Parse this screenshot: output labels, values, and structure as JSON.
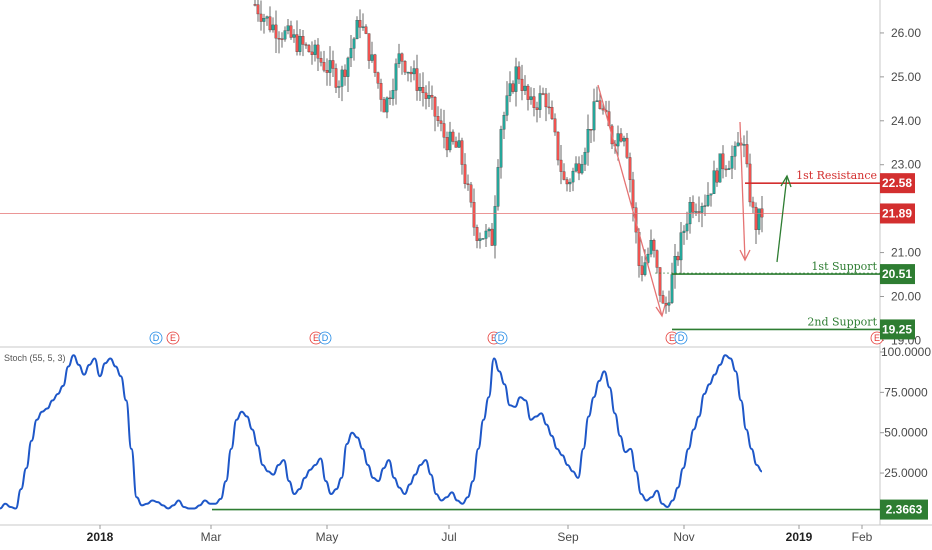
{
  "chart_data": [
    {
      "type": "candlestick",
      "y_range": [
        18.85,
        26.75
      ],
      "y_ticks": [
        "26.00",
        "25.00",
        "24.00",
        "23.00",
        "21.00",
        "20.00",
        "19.00"
      ],
      "x_ticks": [
        {
          "label": "2018",
          "bold": true
        },
        {
          "label": "Mar",
          "bold": false
        },
        {
          "label": "May",
          "bold": false
        },
        {
          "label": "Jul",
          "bold": false
        },
        {
          "label": "Sep",
          "bold": false
        },
        {
          "label": "Nov",
          "bold": false
        },
        {
          "label": "2019",
          "bold": true
        },
        {
          "label": "Feb",
          "bold": false
        }
      ],
      "current_price": "21.89",
      "levels": [
        {
          "label": "1st Resistance",
          "value": "22.58",
          "color": "#d32f2f"
        },
        {
          "label": "1st Support",
          "value": "20.51",
          "color": "#2e7d32"
        },
        {
          "label": "2nd Support",
          "value": "19.25",
          "color": "#2e7d32"
        }
      ],
      "event_markers": [
        "D",
        "E",
        "E",
        "D",
        "E",
        "D",
        "E",
        "D",
        "E"
      ],
      "colors": {
        "up": "#26a69a",
        "down": "#ef5350",
        "price_line": "#e57373",
        "resistance": "#d32f2f",
        "support": "#2e7d32"
      }
    },
    {
      "type": "line",
      "title": "Stoch (55, 5, 3)",
      "y_range": [
        0,
        100
      ],
      "y_ticks": [
        "100.0000",
        "75.0000",
        "50.0000",
        "25.0000"
      ],
      "level": {
        "value": "2.3663",
        "color": "#2e7d32"
      },
      "series": [
        {
          "color": "#1e57c8",
          "values": [
            3,
            6,
            4,
            3,
            15,
            28,
            45,
            58,
            63,
            65,
            70,
            74,
            79,
            91,
            98,
            92,
            86,
            92,
            96,
            85,
            93,
            96,
            91,
            85,
            70,
            40,
            10,
            5,
            6,
            8,
            7,
            5,
            3,
            5,
            8,
            4,
            3,
            3,
            5,
            8,
            6,
            6,
            9,
            20,
            40,
            58,
            63,
            60,
            52,
            42,
            30,
            26,
            24,
            30,
            33,
            20,
            12,
            15,
            22,
            27,
            30,
            34,
            20,
            12,
            15,
            22,
            43,
            50,
            47,
            40,
            30,
            22,
            20,
            28,
            33,
            22,
            16,
            12,
            18,
            24,
            30,
            33,
            24,
            12,
            8,
            10,
            13,
            8,
            6,
            10,
            20,
            40,
            58,
            72,
            96,
            88,
            80,
            67,
            66,
            72,
            70,
            58,
            60,
            62,
            55,
            48,
            40,
            36,
            30,
            26,
            22,
            40,
            60,
            72,
            82,
            88,
            78,
            62,
            48,
            38,
            40,
            26,
            12,
            8,
            10,
            14,
            6,
            4,
            8,
            16,
            28,
            40,
            52,
            60,
            74,
            80,
            86,
            92,
            98,
            96,
            88,
            70,
            52,
            40,
            30,
            26
          ]
        }
      ]
    }
  ]
}
